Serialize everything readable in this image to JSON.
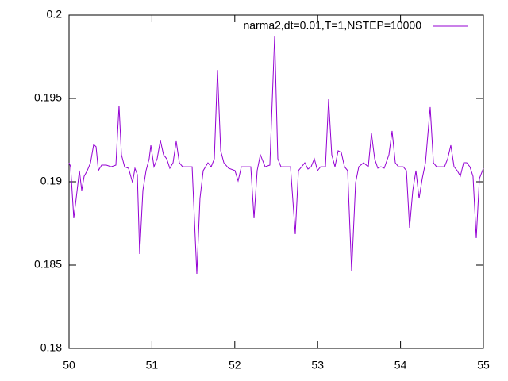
{
  "chart_data": {
    "type": "line",
    "xlim": [
      50,
      55
    ],
    "xticks": [
      50,
      51,
      52,
      53,
      54,
      55
    ],
    "ylim": [
      0.18,
      0.2
    ],
    "yticks": [
      0.18,
      0.185,
      0.19,
      0.195,
      0.2
    ],
    "legend": "top-right",
    "x": [
      50.0,
      50.019,
      50.057,
      50.086,
      50.125,
      50.153,
      50.182,
      50.22,
      50.259,
      50.297,
      50.326,
      50.354,
      50.393,
      50.45,
      50.508,
      50.565,
      50.603,
      50.632,
      50.67,
      50.718,
      50.766,
      50.795,
      50.824,
      50.852,
      50.891,
      50.929,
      50.967,
      50.987,
      51.025,
      51.063,
      51.102,
      51.14,
      51.178,
      51.216,
      51.255,
      51.293,
      51.331,
      51.37,
      51.427,
      51.485,
      51.542,
      51.58,
      51.619,
      51.676,
      51.715,
      51.753,
      51.791,
      51.83,
      51.868,
      51.925,
      52.002,
      52.04,
      52.079,
      52.155,
      52.193,
      52.232,
      52.27,
      52.308,
      52.366,
      52.423,
      52.481,
      52.519,
      52.557,
      52.615,
      52.672,
      52.73,
      52.768,
      52.807,
      52.845,
      52.883,
      52.921,
      52.96,
      52.998,
      53.036,
      53.094,
      53.132,
      53.17,
      53.209,
      53.247,
      53.285,
      53.324,
      53.362,
      53.41,
      53.458,
      53.496,
      53.554,
      53.611,
      53.649,
      53.688,
      53.726,
      53.764,
      53.803,
      53.86,
      53.898,
      53.937,
      53.975,
      54.033,
      54.071,
      54.109,
      54.148,
      54.186,
      54.224,
      54.262,
      54.301,
      54.358,
      54.397,
      54.435,
      54.492,
      54.531,
      54.569,
      54.607,
      54.646,
      54.684,
      54.722,
      54.761,
      54.799,
      54.837,
      54.875,
      54.914,
      54.952,
      55.0
    ],
    "series": [
      {
        "name": "narma2,dt=0.01,T=1,NSTEP=10000",
        "color": "#9400d3",
        "values": [
          0.19114,
          0.1909,
          0.18781,
          0.189,
          0.19067,
          0.18948,
          0.19033,
          0.19067,
          0.19114,
          0.19224,
          0.1921,
          0.19067,
          0.191,
          0.191,
          0.1909,
          0.191,
          0.19457,
          0.19162,
          0.1909,
          0.19081,
          0.18995,
          0.19081,
          0.19043,
          0.18567,
          0.18948,
          0.19067,
          0.19138,
          0.19219,
          0.1909,
          0.19138,
          0.19248,
          0.19162,
          0.19138,
          0.19081,
          0.19114,
          0.19243,
          0.19114,
          0.1909,
          0.1909,
          0.1909,
          0.18448,
          0.189,
          0.19067,
          0.19114,
          0.1909,
          0.19138,
          0.19671,
          0.19186,
          0.19114,
          0.19081,
          0.19067,
          0.19005,
          0.1909,
          0.1909,
          0.1909,
          0.18781,
          0.19067,
          0.19162,
          0.1909,
          0.191,
          0.19876,
          0.19138,
          0.1909,
          0.1909,
          0.1909,
          0.18686,
          0.19067,
          0.1909,
          0.19114,
          0.19076,
          0.1909,
          0.19138,
          0.19067,
          0.1909,
          0.1909,
          0.19495,
          0.19162,
          0.1909,
          0.19186,
          0.19176,
          0.1909,
          0.19067,
          0.18462,
          0.18995,
          0.1909,
          0.19114,
          0.1909,
          0.1929,
          0.19138,
          0.19081,
          0.1909,
          0.19081,
          0.19162,
          0.19305,
          0.19114,
          0.1909,
          0.1909,
          0.19067,
          0.18724,
          0.18948,
          0.19067,
          0.189,
          0.19019,
          0.19114,
          0.19448,
          0.19114,
          0.1909,
          0.1909,
          0.1909,
          0.19138,
          0.19219,
          0.1909,
          0.19067,
          0.19033,
          0.19114,
          0.19114,
          0.1909,
          0.19033,
          0.18662,
          0.19019,
          0.19081
        ]
      }
    ]
  }
}
